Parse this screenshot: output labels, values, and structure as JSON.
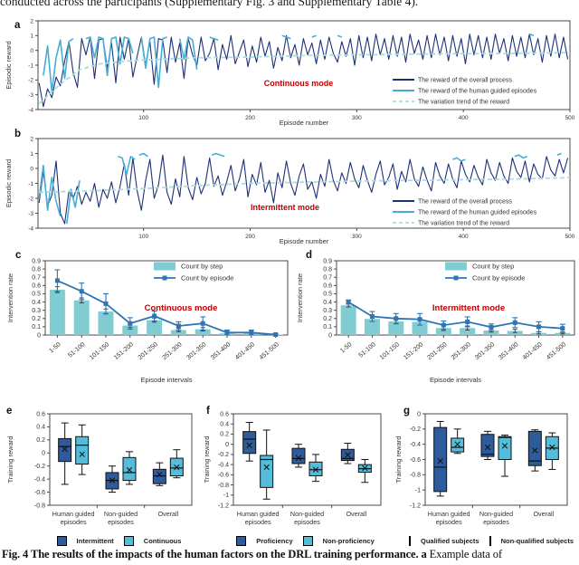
{
  "page": {
    "top_text": "conducted across the participants (Supplementary Fig. 3 and Supplementary Table 4).",
    "caption_bold": "Fig. 4 The results of the impacts of the human factors on the DRL training performance. a",
    "caption_tail": " Example data of"
  },
  "colors": {
    "navy": "#1e3178",
    "sky": "#45aed5",
    "trend": "#a9dcdf",
    "bar_teal": "#7fcdd3",
    "line_blue": "#2e75b6",
    "box_dark": "#2e5b9c",
    "box_light": "#55bcd9",
    "red": "#c00000",
    "axis": "#4a4a4a",
    "text": "#333333"
  },
  "chart_data": [
    {
      "panel": "a",
      "type": "line",
      "title_label": "Continuous mode",
      "xlabel": "Episode number",
      "ylabel": "Episodic reward",
      "xlim": [
        1,
        500
      ],
      "ylim": [
        -4,
        2
      ],
      "xticks": [
        100,
        200,
        300,
        400,
        500
      ],
      "yticks": [
        2,
        1,
        0,
        -1,
        -2,
        -3,
        -4
      ],
      "legend": [
        "The reward of the overall process",
        "The reward of the human guided episodes",
        "The variation trend of the reward"
      ],
      "overall": {
        "x0": 2,
        "dx": 4,
        "y": [
          -2.2,
          -3.8,
          -2.6,
          -3.2,
          -1.8,
          -2.4,
          -0.7,
          0.6,
          -1.5,
          -2.5,
          0.8,
          -0.3,
          0.9,
          -1.9,
          0.7,
          0.8,
          -1.2,
          0.5,
          -2.2,
          0.9,
          -0.6,
          0.8,
          -1.8,
          -0.4,
          0.9,
          -1.0,
          0.6,
          -2.3,
          0.8,
          0.7,
          -1.5,
          0.9,
          -0.8,
          0.5,
          -1.9,
          0.8,
          -0.3,
          -1.0,
          0.9,
          -0.7,
          -0.2,
          0.8,
          -1.3,
          0.4,
          -0.6,
          1.0,
          -0.9,
          -0.1,
          0.7,
          -1.1,
          0.3,
          -0.8,
          0.9,
          -0.4,
          0.6,
          -1.2,
          0.2,
          -0.7,
          1.0,
          -0.5,
          0.4,
          -1.0,
          0.8,
          -0.3,
          0.5,
          -0.9,
          0.7,
          -0.6,
          0.9,
          -0.2,
          -0.8,
          0.6,
          -0.4,
          0.8,
          -1.0,
          1.0,
          -0.5,
          0.9,
          -0.7,
          1.1,
          -0.3,
          0.8,
          -0.6,
          1.0,
          -0.4,
          0.9,
          -0.8,
          1.1,
          -0.2,
          0.7,
          -0.6,
          1.0,
          -0.5,
          1.1,
          -0.3,
          0.9,
          -0.7,
          1.0,
          -0.4,
          0.8,
          -0.9,
          1.1,
          -0.3,
          1.0,
          -0.5,
          0.9,
          -0.6,
          1.1,
          -0.2,
          0.8,
          -0.7,
          1.0,
          -0.4,
          0.9,
          -0.5,
          1.1,
          -0.3,
          0.8,
          -0.8,
          1.0,
          -0.4,
          1.1,
          -0.5,
          0.9,
          -0.6
        ]
      },
      "guided_segments": [
        {
          "x0": 6,
          "dx": 4,
          "y": [
            -1.7,
            0.3,
            -2.8,
            -0.5,
            0.7,
            -1.9,
            0.6,
            0.8
          ]
        },
        {
          "x0": 46,
          "dx": 4,
          "y": [
            0.8,
            0.9,
            -0.5,
            0.9,
            0.8,
            -1.7,
            0.8,
            0.9,
            -0.9,
            0.9,
            0.8,
            -0.2
          ]
        },
        {
          "x0": 98,
          "dx": 4,
          "y": [
            0.9,
            -1.2,
            0.8,
            0.9,
            -2.5,
            0.8,
            0.9
          ]
        },
        {
          "x0": 134,
          "dx": 4,
          "y": [
            0.8,
            -0.6,
            0.9,
            0.7,
            -1.3
          ]
        },
        {
          "x0": 162,
          "dx": 4,
          "y": [
            0.9,
            0.8,
            0.7
          ]
        },
        {
          "x0": 230,
          "dx": 4,
          "y": [
            1.0,
            0.9,
            0.8
          ]
        },
        {
          "x0": 258,
          "dx": 4,
          "y": [
            0.9,
            1.0
          ]
        },
        {
          "x0": 282,
          "dx": 4,
          "y": [
            1.0,
            0.9
          ]
        },
        {
          "x0": 462,
          "dx": 4,
          "y": [
            1.1,
            1.0
          ]
        }
      ],
      "trend": {
        "x": [
          2,
          20,
          40,
          60,
          80,
          100,
          150,
          200,
          250,
          300,
          350,
          400,
          450,
          500
        ],
        "y": [
          -3.6,
          -2.4,
          -1.3,
          -0.9,
          -0.75,
          -0.65,
          -0.5,
          -0.45,
          -0.35,
          -0.3,
          -0.25,
          -0.22,
          -0.2,
          -0.15
        ]
      }
    },
    {
      "panel": "b",
      "type": "line",
      "title_label": "Intermittent mode",
      "xlabel": "Episode number",
      "ylabel": "Episodic reward",
      "xlim": [
        1,
        500
      ],
      "ylim": [
        -4,
        2
      ],
      "xticks": [
        100,
        200,
        300,
        400,
        500
      ],
      "yticks": [
        2,
        1,
        0,
        -1,
        -2,
        -3,
        -4
      ],
      "legend": [
        "The reward of the overall process",
        "The reward of the human guided episodes",
        "The variation trend of the reward"
      ],
      "overall": {
        "x0": 2,
        "dx": 4,
        "y": [
          -2.3,
          -0.2,
          -2.5,
          -1.8,
          0.5,
          -3.0,
          -3.7,
          -1.5,
          -2.0,
          -1.2,
          -2.4,
          -1.6,
          -2.2,
          -1.0,
          -2.6,
          -1.4,
          -2.0,
          -0.9,
          -2.3,
          -1.2,
          0.3,
          -1.8,
          0.7,
          -1.5,
          -2.8,
          -0.8,
          0.6,
          -2.0,
          -1.1,
          0.9,
          -1.6,
          -2.4,
          -0.7,
          -1.9,
          0.8,
          -1.3,
          -2.1,
          -0.6,
          -1.7,
          -1.0,
          0.7,
          -1.2,
          -0.5,
          -1.8,
          -0.9,
          0.2,
          -1.5,
          -0.7,
          0.6,
          -1.9,
          -0.4,
          -1.1,
          0.4,
          -1.6,
          -0.8,
          -2.3,
          -0.3,
          -1.3,
          0.5,
          -1.0,
          -1.8,
          -0.5,
          0.3,
          -1.4,
          -0.9,
          -2.0,
          -0.4,
          -1.2,
          0.6,
          -0.8,
          -1.5,
          -0.3,
          -1.0,
          0.4,
          -0.7,
          -1.3,
          0.2,
          -0.8,
          -1.6,
          -0.4,
          0.5,
          -1.1,
          -0.6,
          0.3,
          -1.4,
          -0.2,
          -0.9,
          0.6,
          -0.7,
          -1.2,
          0.1,
          -0.8,
          -1.5,
          0.4,
          -0.5,
          -1.0,
          0.3,
          -0.7,
          -1.3,
          0.5,
          -0.4,
          -0.9,
          0.2,
          -0.6,
          -1.1,
          0.6,
          -0.3,
          -0.8,
          0.4,
          -0.5,
          -1.0,
          0.7,
          -0.2,
          -0.6,
          0.5,
          -0.9,
          0.3,
          -0.4,
          -0.7,
          0.8,
          -0.1,
          -0.5,
          0.6,
          -0.3,
          0.7
        ]
      },
      "guided_segments": [
        {
          "x0": 2,
          "dx": 4,
          "y": [
            -2.0,
            0.2,
            -2.8,
            -0.6,
            -2.2,
            -3.2
          ]
        },
        {
          "x0": 28,
          "dx": 4,
          "y": [
            -3.7,
            -1.4,
            -2.6,
            -0.8
          ]
        },
        {
          "x0": 76,
          "dx": 4,
          "y": [
            0.8,
            0.7,
            -0.4,
            0.8,
            0.6
          ]
        },
        {
          "x0": 96,
          "dx": 4,
          "y": [
            0.9,
            1.0,
            0.8
          ]
        },
        {
          "x0": 164,
          "dx": 4,
          "y": [
            0.9,
            1.0,
            0.9,
            0.8
          ]
        },
        {
          "x0": 390,
          "dx": 4,
          "y": [
            0.6,
            0.7,
            0.5,
            0.6
          ]
        },
        {
          "x0": 448,
          "dx": 4,
          "y": [
            0.8,
            0.9,
            0.7,
            0.8
          ]
        },
        {
          "x0": 488,
          "dx": 4,
          "y": [
            0.9,
            1.0
          ]
        }
      ],
      "trend": {
        "x": [
          2,
          50,
          100,
          150,
          200,
          250,
          300,
          350,
          400,
          450,
          500
        ],
        "y": [
          -1.6,
          -1.5,
          -1.35,
          -1.15,
          -1.0,
          -0.92,
          -0.85,
          -0.8,
          -0.75,
          -0.7,
          -0.62
        ]
      }
    },
    {
      "panel": "c",
      "type": "bar+line",
      "title_label": "Continuous mode",
      "xlabel": "Episode intervals",
      "ylabel": "Intervention rate",
      "ylim": [
        0,
        0.9
      ],
      "yticks": [
        0,
        0.1,
        0.2,
        0.3,
        0.4,
        0.5,
        0.6,
        0.7,
        0.8,
        0.9
      ],
      "categories": [
        "1-50",
        "51-100",
        "101-150",
        "151-200",
        "201-250",
        "251-300",
        "301-350",
        "351-400",
        "401-450",
        "451-500"
      ],
      "bars": {
        "name": "Count by step",
        "values": [
          0.55,
          0.42,
          0.285,
          0.115,
          0.18,
          0.06,
          0.07,
          0.02,
          0.02,
          0.005
        ],
        "errors": [
          0.035,
          0.03,
          0.03,
          0.025,
          0.025,
          0.02,
          0.02,
          0.01,
          0.01,
          0.005
        ]
      },
      "line": {
        "name": "Count by episode",
        "values": [
          0.66,
          0.53,
          0.38,
          0.14,
          0.23,
          0.11,
          0.14,
          0.03,
          0.03,
          0.005
        ],
        "errors": [
          0.13,
          0.1,
          0.12,
          0.07,
          0.06,
          0.05,
          0.08,
          0.03,
          0.03,
          0.01
        ]
      }
    },
    {
      "panel": "d",
      "type": "bar+line",
      "title_label": "Intermittent mode",
      "xlabel": "Episode intervals",
      "ylabel": "Intervention rate",
      "ylim": [
        0,
        0.9
      ],
      "yticks": [
        0,
        0.1,
        0.2,
        0.3,
        0.4,
        0.5,
        0.6,
        0.7,
        0.8,
        0.9
      ],
      "categories": [
        "1-50",
        "51-100",
        "101-150",
        "151-200",
        "201-250",
        "251-300",
        "301-350",
        "351-400",
        "401-450",
        "451-500"
      ],
      "bars": {
        "name": "Count by step",
        "values": [
          0.36,
          0.195,
          0.165,
          0.16,
          0.085,
          0.085,
          0.055,
          0.05,
          0.025,
          0.025
        ],
        "errors": [
          0.02,
          0.03,
          0.03,
          0.04,
          0.03,
          0.025,
          0.02,
          0.02,
          0.012,
          0.012
        ]
      },
      "line": {
        "name": "Count by episode",
        "values": [
          0.4,
          0.225,
          0.2,
          0.19,
          0.12,
          0.16,
          0.095,
          0.15,
          0.1,
          0.08
        ],
        "errors": [
          0.025,
          0.06,
          0.06,
          0.07,
          0.05,
          0.06,
          0.04,
          0.06,
          0.06,
          0.05
        ]
      }
    },
    {
      "panel": "e",
      "type": "box",
      "ylabel": "Training reward",
      "ylim": [
        -0.8,
        0.6
      ],
      "yticks": [
        0.6,
        0.4,
        0.2,
        0,
        -0.2,
        -0.4,
        -0.6,
        -0.8
      ],
      "categories": [
        [
          "Human guided",
          "episodes"
        ],
        [
          "Non-guided",
          "episodes"
        ],
        [
          "Overall"
        ]
      ],
      "series": [
        {
          "name": "Intermittent",
          "color_key": "box_dark",
          "boxes": [
            {
              "lo": -0.48,
              "q1": -0.13,
              "med": 0.1,
              "q3": 0.22,
              "hi": 0.46,
              "mean": 0.06
            },
            {
              "lo": -0.6,
              "q1": -0.55,
              "med": -0.42,
              "q3": -0.3,
              "hi": -0.2,
              "mean": -0.42
            },
            {
              "lo": -0.5,
              "q1": -0.47,
              "med": -0.35,
              "q3": -0.25,
              "hi": -0.15,
              "mean": -0.33
            }
          ]
        },
        {
          "name": "Continuous",
          "color_key": "box_light",
          "boxes": [
            {
              "lo": -0.33,
              "q1": -0.17,
              "med": 0.12,
              "q3": 0.25,
              "hi": 0.43,
              "mean": -0.02
            },
            {
              "lo": -0.48,
              "q1": -0.42,
              "med": -0.3,
              "q3": -0.07,
              "hi": 0.02,
              "mean": -0.26
            },
            {
              "lo": -0.38,
              "q1": -0.35,
              "med": -0.23,
              "q3": -0.08,
              "hi": 0.05,
              "mean": -0.22
            }
          ]
        }
      ]
    },
    {
      "panel": "f",
      "type": "box",
      "ylabel": "Training reward",
      "ylim": [
        -1.2,
        0.6
      ],
      "yticks": [
        0.6,
        0.4,
        0.2,
        0,
        -0.2,
        -0.4,
        -0.6,
        -0.8,
        -1,
        -1.2
      ],
      "categories": [
        [
          "Human guided",
          "episodes"
        ],
        [
          "Non-guided",
          "episodes"
        ],
        [
          "Overall"
        ]
      ],
      "series": [
        {
          "name": "Proficiency",
          "color_key": "box_dark",
          "boxes": [
            {
              "lo": -0.33,
              "q1": -0.18,
              "med": 0.1,
              "q3": 0.25,
              "hi": 0.43,
              "mean": -0.02
            },
            {
              "lo": -0.45,
              "q1": -0.38,
              "med": -0.28,
              "q3": -0.08,
              "hi": 0.0,
              "mean": -0.27
            },
            {
              "lo": -0.38,
              "q1": -0.32,
              "med": -0.28,
              "q3": -0.1,
              "hi": 0.02,
              "mean": -0.21
            }
          ]
        },
        {
          "name": "Non-proficiency",
          "color_key": "box_light",
          "boxes": [
            {
              "lo": -1.08,
              "q1": -0.85,
              "med": -0.3,
              "q3": -0.22,
              "hi": 0.28,
              "mean": -0.45
            },
            {
              "lo": -0.73,
              "q1": -0.62,
              "med": -0.5,
              "q3": -0.35,
              "hi": -0.2,
              "mean": -0.5
            },
            {
              "lo": -0.75,
              "q1": -0.55,
              "med": -0.48,
              "q3": -0.4,
              "hi": -0.3,
              "mean": -0.47
            }
          ]
        }
      ]
    },
    {
      "panel": "g",
      "type": "box",
      "ylabel": "Training reward",
      "ylim": [
        -1.2,
        0
      ],
      "yticks": [
        0,
        -0.2,
        -0.4,
        -0.6,
        -0.8,
        -1,
        -1.2
      ],
      "categories": [
        [
          "Human guided",
          "episodes"
        ],
        [
          "Non-guided",
          "episodes"
        ],
        [
          "Overall"
        ]
      ],
      "series": [
        {
          "name": "Qualified subjects",
          "color_key": "box_dark",
          "boxes": [
            {
              "lo": -1.08,
              "q1": -1.02,
              "med": -0.7,
              "q3": -0.18,
              "hi": -0.1,
              "mean": -0.62
            },
            {
              "lo": -0.6,
              "q1": -0.56,
              "med": -0.53,
              "q3": -0.27,
              "hi": -0.23,
              "mean": -0.44
            },
            {
              "lo": -0.75,
              "q1": -0.68,
              "med": -0.62,
              "q3": -0.23,
              "hi": -0.21,
              "mean": -0.48
            }
          ]
        },
        {
          "name": "Non-qualified subjects",
          "color_key": "box_light",
          "boxes": [
            {
              "lo": -0.52,
              "q1": -0.5,
              "med": -0.44,
              "q3": -0.32,
              "hi": -0.2,
              "mean": -0.4
            },
            {
              "lo": -0.82,
              "q1": -0.6,
              "med": -0.31,
              "q3": -0.3,
              "hi": -0.28,
              "mean": -0.42
            },
            {
              "lo": -0.73,
              "q1": -0.6,
              "med": -0.45,
              "q3": -0.3,
              "hi": -0.25,
              "mean": -0.44
            }
          ]
        }
      ]
    }
  ]
}
